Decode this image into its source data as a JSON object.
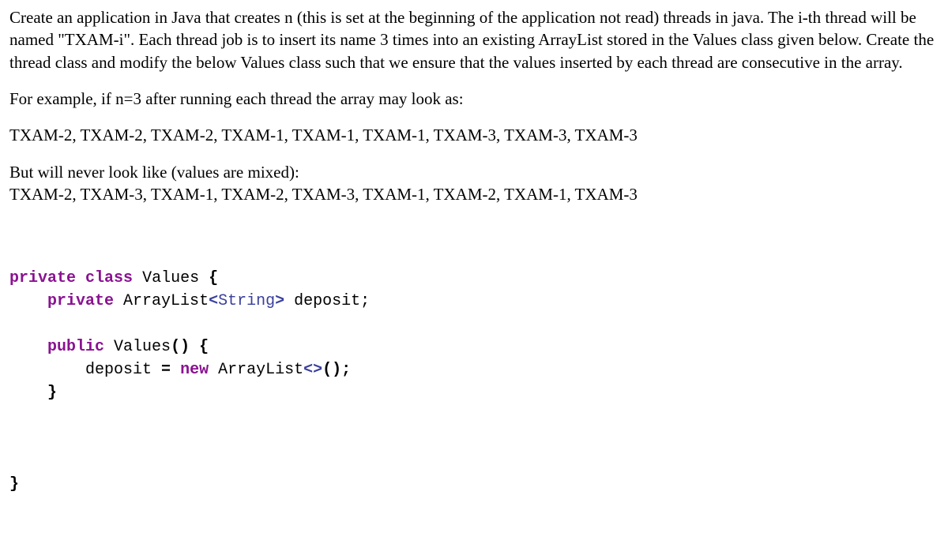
{
  "para1": "Create an application in Java that creates n (this is set at the beginning of the application not read) threads in java. The i-th thread will be named \"TXAM-i\". Each thread job is to insert its name 3 times into an existing ArrayList stored in the Values class given below. Create the thread class and modify the below Values class such that we ensure that the values inserted by each thread are consecutive in the array.",
  "para2": "For example, if n=3 after running each thread the array may look as:",
  "example_good": "TXAM-2, TXAM-2, TXAM-2, TXAM-1, TXAM-1, TXAM-1, TXAM-3, TXAM-3, TXAM-3",
  "para3a": "But will never look like (values are mixed):",
  "example_bad": "TXAM-2, TXAM-3, TXAM-1, TXAM-2, TXAM-3, TXAM-1, TXAM-2, TXAM-1, TXAM-3",
  "code": {
    "l1_private": "private",
    "l1_class": "class",
    "l1_name": "Values",
    "l1_brace": "{",
    "l2_private": "private",
    "l2_type": "ArrayList",
    "l2_lt": "<",
    "l2_gentype": "String",
    "l2_gt": ">",
    "l2_ident": " deposit;",
    "l3_public": "public",
    "l3_name": "Values",
    "l3_parens": "()",
    "l3_brace": "{",
    "l4_lhs": "deposit ",
    "l4_eq": "=",
    "l4_new": "new",
    "l4_type": "ArrayList",
    "l4_diamond": "<>",
    "l4_parenssemi": "();",
    "l5_close": "}",
    "l6_close": "}"
  }
}
